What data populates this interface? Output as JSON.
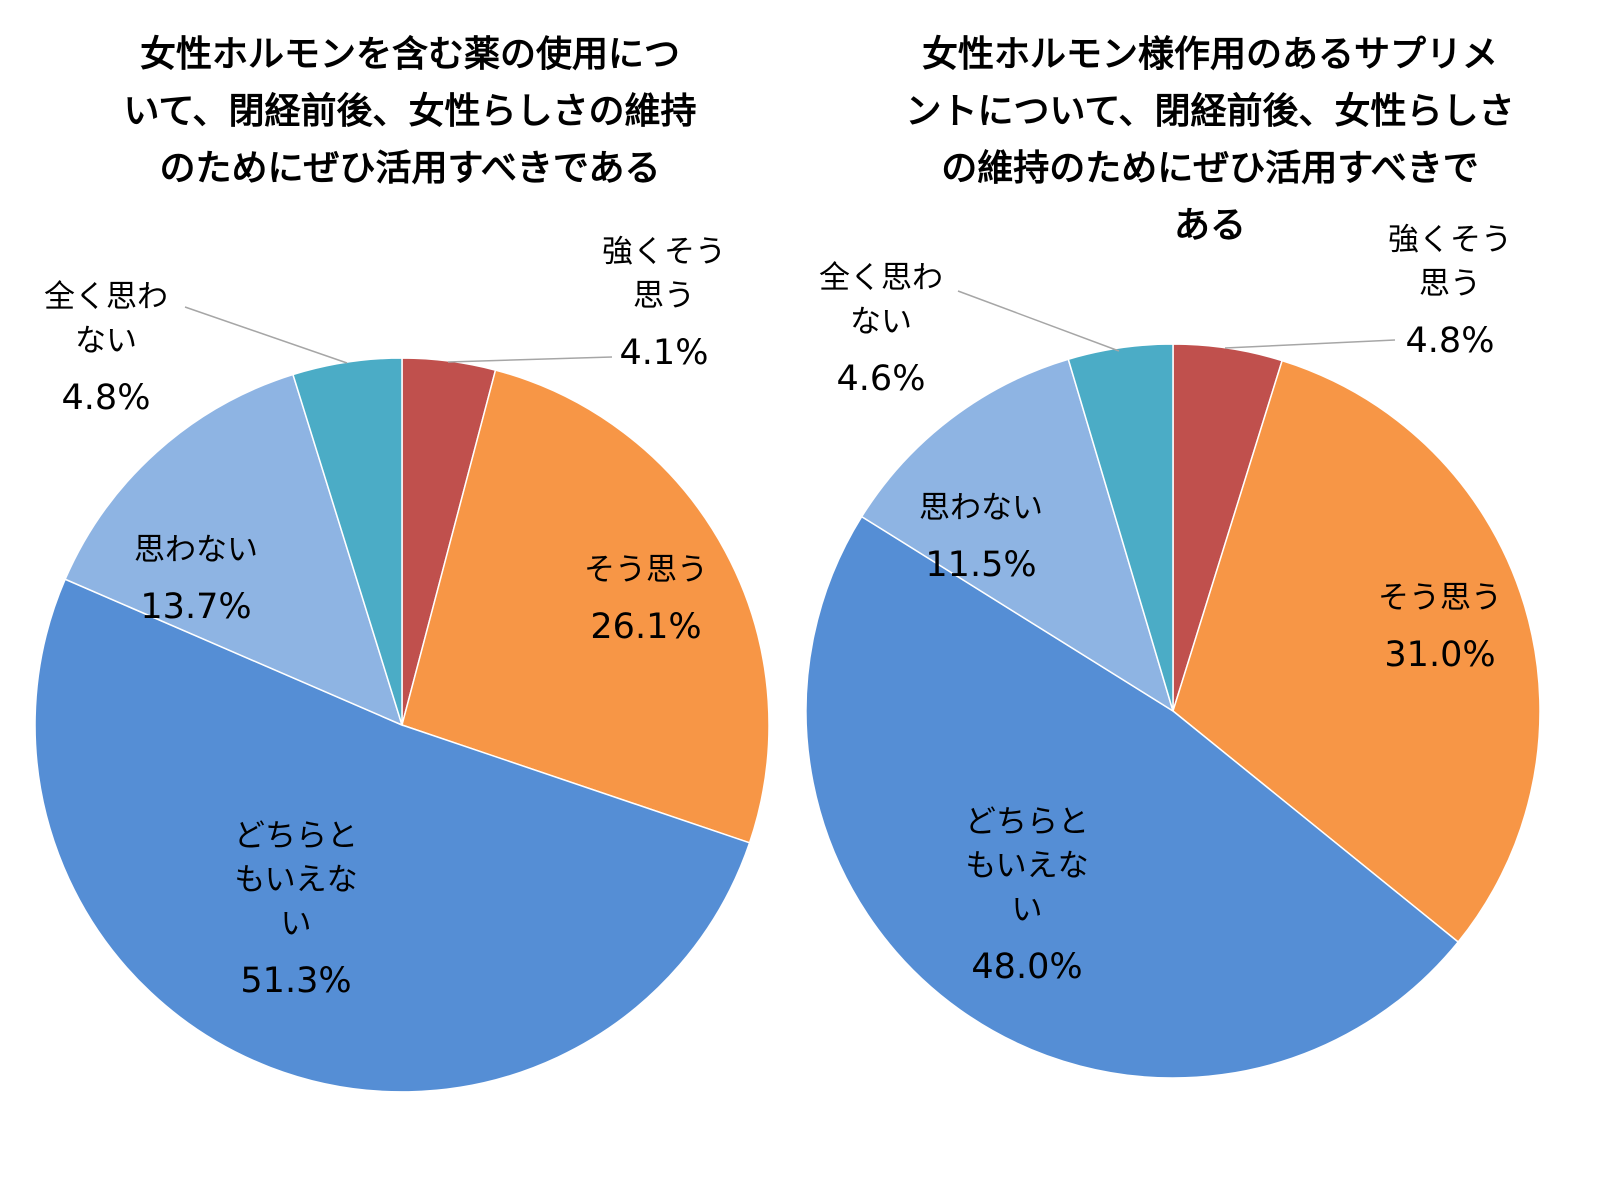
{
  "chart_data": [
    {
      "type": "pie",
      "title": "女性ホルモンを含む薬の使用について、閉経前後、女性らしさの維持のためにぜひ活用すべきである",
      "title_lines": [
        "女性ホルモンを含む薬の使用につ",
        "いて、閉経前後、女性らしさの維持",
        "のためにぜひ活用すべきである"
      ],
      "start_angle": "12 o'clock",
      "direction": "clockwise",
      "slices": [
        {
          "label": "強くそう思う",
          "label_lines": [
            "強くそう",
            "思う"
          ],
          "value": 4.1,
          "display": "4.1%",
          "color": "#c0504d"
        },
        {
          "label": "そう思う",
          "label_lines": [
            "そう思う"
          ],
          "value": 26.1,
          "display": "26.1%",
          "color": "#f79646"
        },
        {
          "label": "どちらともいえない",
          "label_lines": [
            "どちらと",
            "もいえな",
            "い"
          ],
          "value": 51.3,
          "display": "51.3%",
          "color": "#558ed5"
        },
        {
          "label": "思わない",
          "label_lines": [
            "思わない"
          ],
          "value": 13.7,
          "display": "13.7%",
          "color": "#8eb4e3"
        },
        {
          "label": "全く思わない",
          "label_lines": [
            "全く思わ",
            "ない"
          ],
          "value": 4.8,
          "display": "4.8%",
          "color": "#4bacc6"
        }
      ]
    },
    {
      "type": "pie",
      "title": "女性ホルモン様作用のあるサプリメントについて、閉経前後、女性らしさの維持のためにぜひ活用すべきである",
      "title_lines": [
        "女性ホルモン様作用のあるサプリメ",
        "ントについて、閉経前後、女性らしさ",
        "の維持のためにぜひ活用すべきで",
        "ある"
      ],
      "start_angle": "12 o'clock",
      "direction": "clockwise",
      "slices": [
        {
          "label": "強くそう思う",
          "label_lines": [
            "強くそう",
            "思う"
          ],
          "value": 4.8,
          "display": "4.8%",
          "color": "#c0504d"
        },
        {
          "label": "そう思う",
          "label_lines": [
            "そう思う"
          ],
          "value": 31.0,
          "display": "31.0%",
          "color": "#f79646"
        },
        {
          "label": "どちらともいえない",
          "label_lines": [
            "どちらと",
            "もいえな",
            "い"
          ],
          "value": 48.0,
          "display": "48.0%",
          "color": "#558ed5"
        },
        {
          "label": "思わない",
          "label_lines": [
            "思わない"
          ],
          "value": 11.5,
          "display": "11.5%",
          "color": "#8eb4e3"
        },
        {
          "label": "全く思わない",
          "label_lines": [
            "全く思わ",
            "ない"
          ],
          "value": 4.6,
          "display": "4.6%",
          "color": "#4bacc6"
        }
      ]
    }
  ]
}
